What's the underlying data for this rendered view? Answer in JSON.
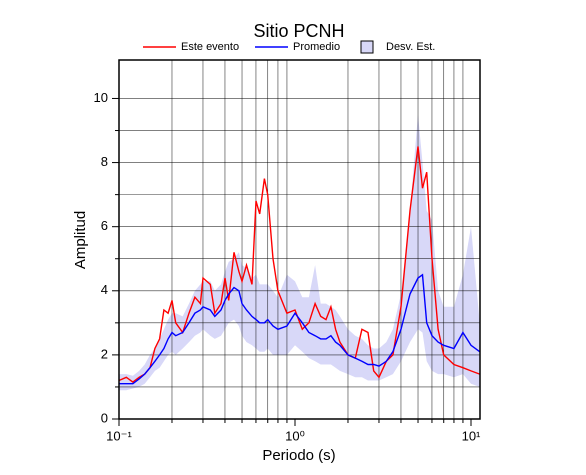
{
  "chart_data": {
    "type": "line",
    "title": "Sitio PCNH",
    "xlabel": "Periodo (s)",
    "ylabel": "Amplitud",
    "xscale": "log",
    "grid": true,
    "xlim": [
      0.1,
      11.25
    ],
    "ylim": [
      0,
      11.2
    ],
    "xticks": [
      {
        "value": 0.1,
        "label": "10⁻¹"
      },
      {
        "value": 1,
        "label": "10⁰"
      },
      {
        "value": 10,
        "label": "10¹"
      }
    ],
    "xminorticks": [
      0.2,
      0.3,
      0.4,
      0.5,
      0.6,
      0.7,
      0.8,
      0.9,
      2,
      3,
      4,
      5,
      6,
      7,
      8,
      9
    ],
    "yticks": [
      0,
      2,
      4,
      6,
      8,
      10
    ],
    "yminorticks": [
      1,
      3,
      5,
      7,
      9
    ],
    "x": [
      0.1,
      0.11,
      0.12,
      0.13,
      0.14,
      0.15,
      0.16,
      0.17,
      0.18,
      0.19,
      0.2,
      0.21,
      0.23,
      0.25,
      0.27,
      0.29,
      0.3,
      0.33,
      0.35,
      0.38,
      0.4,
      0.42,
      0.45,
      0.48,
      0.5,
      0.53,
      0.57,
      0.6,
      0.63,
      0.67,
      0.7,
      0.75,
      0.8,
      0.9,
      1.0,
      1.1,
      1.2,
      1.3,
      1.4,
      1.5,
      1.6,
      1.7,
      1.8,
      2.0,
      2.2,
      2.4,
      2.6,
      2.8,
      3.0,
      3.3,
      3.6,
      4.0,
      4.5,
      5.0,
      5.3,
      5.6,
      6.0,
      6.5,
      7.0,
      8.0,
      9.0,
      10,
      11.2
    ],
    "series": [
      {
        "name": "Este evento",
        "color": "#ff0000",
        "values": [
          1.2,
          1.3,
          1.15,
          1.3,
          1.4,
          1.6,
          2.2,
          2.5,
          3.4,
          3.3,
          3.7,
          3.0,
          2.7,
          3.3,
          3.8,
          3.6,
          4.4,
          4.2,
          3.3,
          3.6,
          4.4,
          3.7,
          5.2,
          4.6,
          4.3,
          4.8,
          4.2,
          6.8,
          6.4,
          7.5,
          7.0,
          5.0,
          4.0,
          3.3,
          3.4,
          2.8,
          3.0,
          3.6,
          3.2,
          3.1,
          3.5,
          2.8,
          2.4,
          2.0,
          1.9,
          2.8,
          2.7,
          1.5,
          1.3,
          1.8,
          2.0,
          3.5,
          6.5,
          8.5,
          7.2,
          7.7,
          5.0,
          2.8,
          2.0,
          1.7,
          1.6,
          1.5,
          1.4
        ]
      },
      {
        "name": "Promedio",
        "color": "#0000ff",
        "values": [
          1.1,
          1.1,
          1.1,
          1.25,
          1.4,
          1.6,
          1.8,
          2.0,
          2.2,
          2.5,
          2.7,
          2.6,
          2.7,
          3.0,
          3.3,
          3.4,
          3.5,
          3.4,
          3.2,
          3.4,
          3.7,
          3.9,
          4.1,
          4.0,
          3.6,
          3.4,
          3.2,
          3.1,
          3.0,
          3.0,
          3.1,
          2.9,
          2.8,
          2.9,
          3.3,
          3.0,
          2.7,
          2.6,
          2.5,
          2.5,
          2.6,
          2.4,
          2.3,
          2.0,
          1.9,
          1.8,
          1.7,
          1.7,
          1.65,
          1.8,
          2.1,
          2.8,
          3.9,
          4.4,
          4.5,
          3.0,
          2.6,
          2.4,
          2.3,
          2.2,
          2.7,
          2.3,
          2.1
        ]
      },
      {
        "name": "Desv. Est.",
        "color": "#d8d8f8",
        "lower": [
          0.9,
          0.9,
          0.95,
          1.0,
          1.1,
          1.3,
          1.5,
          1.6,
          1.8,
          2.0,
          2.1,
          2.0,
          2.2,
          2.4,
          2.6,
          2.7,
          2.8,
          2.6,
          2.5,
          2.6,
          2.8,
          3.0,
          3.1,
          2.9,
          2.6,
          2.4,
          2.3,
          2.2,
          2.1,
          2.1,
          2.2,
          2.0,
          2.0,
          2.0,
          2.3,
          2.1,
          1.9,
          1.8,
          1.7,
          1.7,
          1.7,
          1.6,
          1.5,
          1.4,
          1.3,
          1.3,
          1.2,
          1.2,
          1.2,
          1.3,
          1.4,
          1.8,
          2.4,
          2.8,
          2.7,
          1.8,
          1.5,
          1.4,
          1.4,
          1.3,
          1.4,
          1.1,
          1.0
        ],
        "upper": [
          1.4,
          1.4,
          1.35,
          1.5,
          1.7,
          2.0,
          2.2,
          2.5,
          2.8,
          3.1,
          3.3,
          3.3,
          3.2,
          3.6,
          4.0,
          4.2,
          4.3,
          4.3,
          4.0,
          4.2,
          4.6,
          4.9,
          5.0,
          5.2,
          4.8,
          4.7,
          4.4,
          4.5,
          4.2,
          4.2,
          4.2,
          4.0,
          3.8,
          4.5,
          4.3,
          3.8,
          3.8,
          4.8,
          3.6,
          3.6,
          3.5,
          3.4,
          3.2,
          2.8,
          2.6,
          2.5,
          2.3,
          2.2,
          2.2,
          2.4,
          2.8,
          3.9,
          6.5,
          9.5,
          8.0,
          6.5,
          6.2,
          4.0,
          3.5,
          3.5,
          4.5,
          6.0,
          3.0
        ]
      }
    ]
  }
}
